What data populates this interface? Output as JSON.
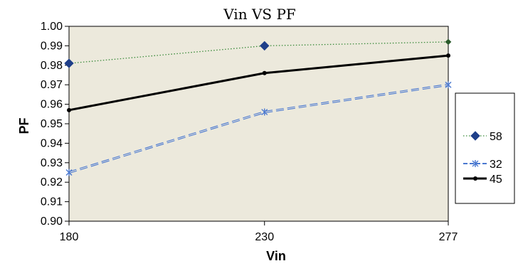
{
  "chart_data": {
    "type": "line",
    "title": "Vin VS PF",
    "xlabel": "Vin",
    "ylabel": "PF",
    "x": [
      180,
      230,
      277
    ],
    "x_tick_labels": [
      "180",
      "230",
      "277"
    ],
    "xlim": [
      180,
      277
    ],
    "ylim": [
      0.9,
      1.0
    ],
    "y_ticks": [
      "0.90",
      "0.91",
      "0.92",
      "0.93",
      "0.94",
      "0.95",
      "0.96",
      "0.97",
      "0.98",
      "0.99",
      "1.00"
    ],
    "grid": false,
    "legend_position": "right",
    "plot_background": "#ece9dc",
    "series": [
      {
        "name": "58",
        "values": [
          0.981,
          0.99,
          0.992
        ],
        "color": "#3a8a3a",
        "marker_color": "#1f3f8a",
        "line_style": "dotted",
        "marker": "diamond"
      },
      {
        "name": "45",
        "values": [
          0.957,
          0.976,
          0.985
        ],
        "color": "#000000",
        "line_style": "solid",
        "marker": "circle"
      },
      {
        "name": "32",
        "values": [
          0.925,
          0.956,
          0.97
        ],
        "color": "#4a78d0",
        "line_style": "dashed",
        "marker": "star"
      }
    ]
  }
}
